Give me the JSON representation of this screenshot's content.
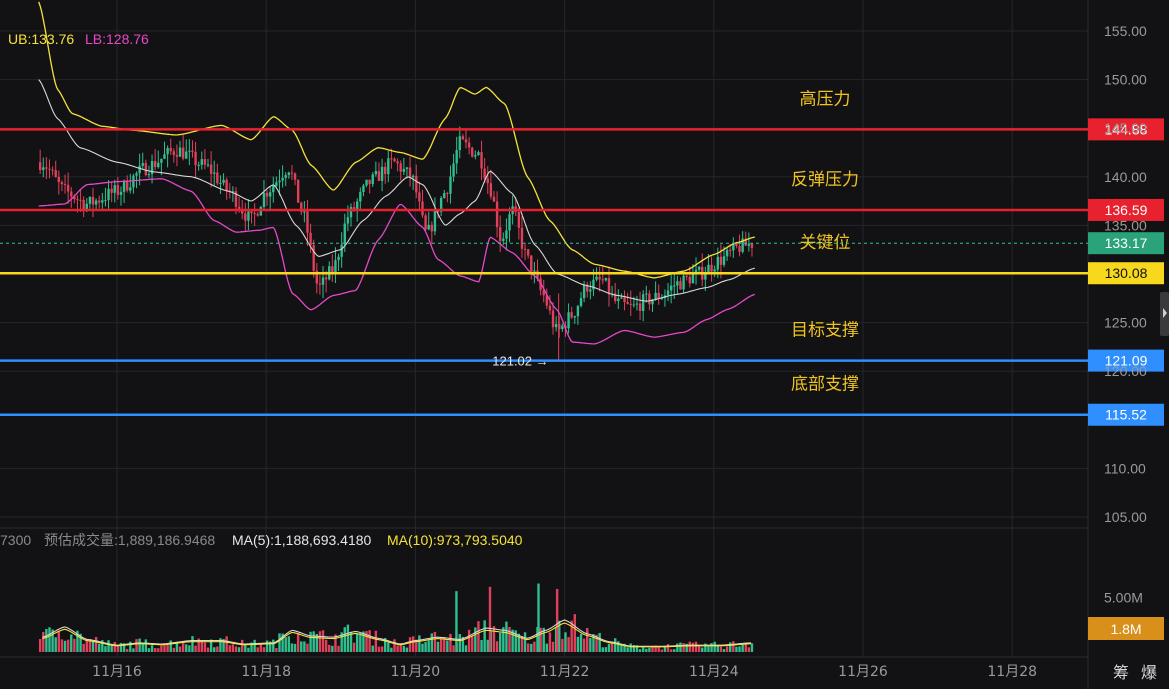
{
  "legend_top": {
    "ub": "UB:133.76",
    "lb": "LB:128.76"
  },
  "legend_volume": {
    "prefix": "7300",
    "estimated": "预估成交量:1,889,186.9468",
    "ma5": "MA(5):1,188,693.4180",
    "ma10": "MA(10):973,793.5040"
  },
  "colors": {
    "background": "#121214",
    "grid": "#26262a",
    "up": "#2fbf8f",
    "down": "#e0405a",
    "upper_band": "#f5e23a",
    "lower_band": "#e548c8",
    "mid_band": "#d8d8d8",
    "resistance": "#e8212e",
    "key_level": "#f7d81d",
    "support": "#2f8fff",
    "annotation": "#f0c420",
    "axis_text": "#9a9a9a"
  },
  "chart_data": [
    {
      "type": "candlestick",
      "title": "",
      "y_axis_ticks": [
        "155.00",
        "150.00",
        "145.00",
        "140.00",
        "135.00",
        "125.00",
        "120.00",
        "110.00",
        "105.00"
      ],
      "y_axis_tick_values": [
        155,
        150,
        145,
        140,
        135,
        125,
        120,
        110,
        105
      ],
      "ylim": [
        103,
        157.5
      ],
      "x_axis_ticks": [
        "11月16",
        "11月18",
        "11月20",
        "11月22",
        "11月24",
        "11月26",
        "11月28"
      ],
      "x_range_days": [
        14.95,
        29.5
      ],
      "horizontal_levels": [
        {
          "value": 144.88,
          "label": "144.88",
          "annotation": "高压力",
          "kind": "resistance"
        },
        {
          "value": 136.59,
          "label": "136.59",
          "annotation": "反弹压力",
          "kind": "resistance"
        },
        {
          "value": 130.08,
          "label": "130.08",
          "annotation": "关键位",
          "kind": "key"
        },
        {
          "value": 121.09,
          "label": "121.09",
          "annotation": "目标支撑",
          "kind": "support"
        },
        {
          "value": 115.52,
          "label": "115.52",
          "annotation": "底部支撑",
          "kind": "support"
        }
      ],
      "current_price": {
        "value": 133.17,
        "label": "133.17"
      },
      "low_marker": {
        "value": 121.02,
        "label": "121.02 →"
      },
      "bollinger_anchors": {
        "upper": [
          [
            14.95,
            158
          ],
          [
            15.2,
            149
          ],
          [
            15.4,
            146.5
          ],
          [
            15.8,
            145.2
          ],
          [
            16.2,
            144.8
          ],
          [
            16.8,
            144.3
          ],
          [
            17.4,
            145.3
          ],
          [
            17.8,
            143.8
          ],
          [
            18.1,
            146.2
          ],
          [
            18.35,
            144.8
          ],
          [
            18.6,
            141.2
          ],
          [
            18.9,
            138.6
          ],
          [
            19.2,
            141.5
          ],
          [
            19.5,
            143
          ],
          [
            19.8,
            142.5
          ],
          [
            20.1,
            141.8
          ],
          [
            20.4,
            146
          ],
          [
            20.6,
            149.2
          ],
          [
            20.8,
            148.5
          ],
          [
            20.95,
            149.2
          ],
          [
            21.2,
            147.5
          ],
          [
            21.5,
            140
          ],
          [
            21.8,
            135.5
          ],
          [
            22.1,
            132.5
          ],
          [
            22.4,
            131
          ],
          [
            22.8,
            130.3
          ],
          [
            23.2,
            129.6
          ],
          [
            23.6,
            130.3
          ],
          [
            24.0,
            132
          ],
          [
            24.3,
            133.2
          ],
          [
            24.55,
            133.8
          ]
        ],
        "middle": [
          [
            14.95,
            150
          ],
          [
            15.2,
            146
          ],
          [
            15.5,
            143
          ],
          [
            16.0,
            141.5
          ],
          [
            16.5,
            140.5
          ],
          [
            17.0,
            140
          ],
          [
            17.5,
            138.5
          ],
          [
            17.8,
            137.5
          ],
          [
            18.1,
            139.2
          ],
          [
            18.4,
            135
          ],
          [
            18.7,
            131.8
          ],
          [
            19.0,
            132.5
          ],
          [
            19.3,
            135.5
          ],
          [
            19.6,
            138
          ],
          [
            19.9,
            140
          ],
          [
            20.1,
            139.2
          ],
          [
            20.4,
            135
          ],
          [
            20.6,
            136.2
          ],
          [
            20.8,
            137.5
          ],
          [
            21.0,
            140.6
          ],
          [
            21.3,
            138.3
          ],
          [
            21.6,
            133
          ],
          [
            21.9,
            130
          ],
          [
            22.3,
            128.8
          ],
          [
            22.7,
            127.8
          ],
          [
            23.1,
            127.2
          ],
          [
            23.5,
            127.9
          ],
          [
            23.9,
            128.6
          ],
          [
            24.2,
            129.4
          ],
          [
            24.55,
            130.6
          ]
        ],
        "lower": [
          [
            14.95,
            137
          ],
          [
            15.3,
            137.2
          ],
          [
            15.6,
            139.2
          ],
          [
            16.0,
            139.5
          ],
          [
            16.6,
            139.8
          ],
          [
            17.0,
            138.5
          ],
          [
            17.3,
            135.5
          ],
          [
            17.6,
            134.3
          ],
          [
            17.9,
            134.5
          ],
          [
            18.1,
            134.8
          ],
          [
            18.35,
            128
          ],
          [
            18.6,
            126.3
          ],
          [
            18.9,
            127.8
          ],
          [
            19.2,
            128.3
          ],
          [
            19.5,
            133.5
          ],
          [
            19.8,
            137.2
          ],
          [
            20.1,
            134.8
          ],
          [
            20.3,
            131.5
          ],
          [
            20.6,
            129.8
          ],
          [
            20.85,
            129.2
          ],
          [
            21.0,
            133.8
          ],
          [
            21.3,
            132.2
          ],
          [
            21.6,
            129.8
          ],
          [
            21.9,
            126.3
          ],
          [
            22.1,
            123
          ],
          [
            22.4,
            122.8
          ],
          [
            22.8,
            124.2
          ],
          [
            23.2,
            123.5
          ],
          [
            23.6,
            124
          ],
          [
            23.9,
            125.3
          ],
          [
            24.2,
            126.4
          ],
          [
            24.55,
            127.9
          ]
        ]
      },
      "price_path_anchors": [
        [
          15.0,
          141.5
        ],
        [
          15.3,
          138.5
        ],
        [
          15.6,
          137.2
        ],
        [
          16.0,
          138.5
        ],
        [
          16.4,
          141
        ],
        [
          16.8,
          142.8
        ],
        [
          17.2,
          141
        ],
        [
          17.5,
          138.5
        ],
        [
          17.8,
          135.5
        ],
        [
          18.0,
          138.5
        ],
        [
          18.3,
          141
        ],
        [
          18.5,
          136
        ],
        [
          18.7,
          128.5
        ],
        [
          18.9,
          130.5
        ],
        [
          19.1,
          136
        ],
        [
          19.4,
          139.5
        ],
        [
          19.7,
          141.5
        ],
        [
          19.95,
          140
        ],
        [
          20.15,
          134
        ],
        [
          20.4,
          138.5
        ],
        [
          20.6,
          143.5
        ],
        [
          20.85,
          142.3
        ],
        [
          21.0,
          139
        ],
        [
          21.15,
          133.5
        ],
        [
          21.3,
          136.5
        ],
        [
          21.5,
          131.5
        ],
        [
          21.7,
          128
        ],
        [
          21.9,
          124
        ],
        [
          22.1,
          125.8
        ],
        [
          22.3,
          128.8
        ],
        [
          22.5,
          129.3
        ],
        [
          22.7,
          127
        ],
        [
          22.9,
          126.5
        ],
        [
          23.1,
          127.3
        ],
        [
          23.3,
          127.8
        ],
        [
          23.5,
          129
        ],
        [
          23.8,
          130
        ],
        [
          24.1,
          131.5
        ],
        [
          24.35,
          132.8
        ],
        [
          24.55,
          133.2
        ]
      ],
      "volume_panel": {
        "y_axis_ticks": [
          "5.00M"
        ],
        "y_axis_tick_values": [
          5.0
        ],
        "ylim_millions": [
          0,
          9.2
        ],
        "current_volume_label": "1.8M",
        "volume_anchors_millions": [
          [
            15.0,
            1.3
          ],
          [
            15.3,
            2.2
          ],
          [
            15.6,
            1.1
          ],
          [
            16.0,
            0.6
          ],
          [
            16.3,
            0.8
          ],
          [
            16.6,
            0.7
          ],
          [
            17.0,
            1.0
          ],
          [
            17.4,
            1.0
          ],
          [
            17.7,
            0.7
          ],
          [
            18.1,
            0.8
          ],
          [
            18.35,
            1.9
          ],
          [
            18.6,
            1.4
          ],
          [
            18.9,
            1.3
          ],
          [
            19.2,
            1.8
          ],
          [
            19.5,
            1.2
          ],
          [
            19.8,
            0.7
          ],
          [
            20.0,
            1.0
          ],
          [
            20.3,
            1.3
          ],
          [
            20.6,
            1.1
          ],
          [
            20.95,
            2.1
          ],
          [
            21.2,
            1.9
          ],
          [
            21.5,
            1.2
          ],
          [
            21.75,
            1.9
          ],
          [
            22.0,
            2.8
          ],
          [
            22.3,
            1.6
          ],
          [
            22.6,
            0.9
          ],
          [
            22.9,
            0.5
          ],
          [
            23.3,
            0.5
          ],
          [
            23.7,
            0.6
          ],
          [
            24.1,
            0.6
          ],
          [
            24.5,
            0.8
          ]
        ],
        "volume_spikes_millions": [
          [
            20.55,
            5.6
          ],
          [
            21.0,
            6.0
          ],
          [
            21.65,
            6.3
          ],
          [
            21.9,
            5.8
          ]
        ]
      }
    }
  ]
}
